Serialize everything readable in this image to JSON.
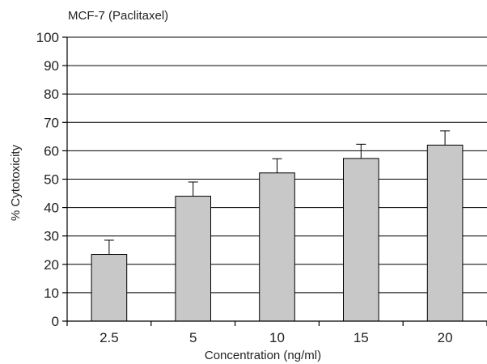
{
  "chart_data": {
    "type": "bar",
    "title": "MCF-7 (Paclitaxel)",
    "xlabel": "Concentration (ng/ml)",
    "ylabel": "% Cytotoxicity",
    "categories": [
      "2.5",
      "5",
      "10",
      "15",
      "20"
    ],
    "values": [
      23.5,
      44,
      52.2,
      57.3,
      62
    ],
    "error": [
      5,
      5,
      5,
      5,
      5
    ],
    "ylim": [
      0,
      100
    ],
    "yticks": [
      0,
      10,
      20,
      30,
      40,
      50,
      60,
      70,
      80,
      90,
      100
    ],
    "grid": true,
    "legend": "none",
    "bar_color": "#c8c8c8",
    "edge_color": "#000000"
  }
}
